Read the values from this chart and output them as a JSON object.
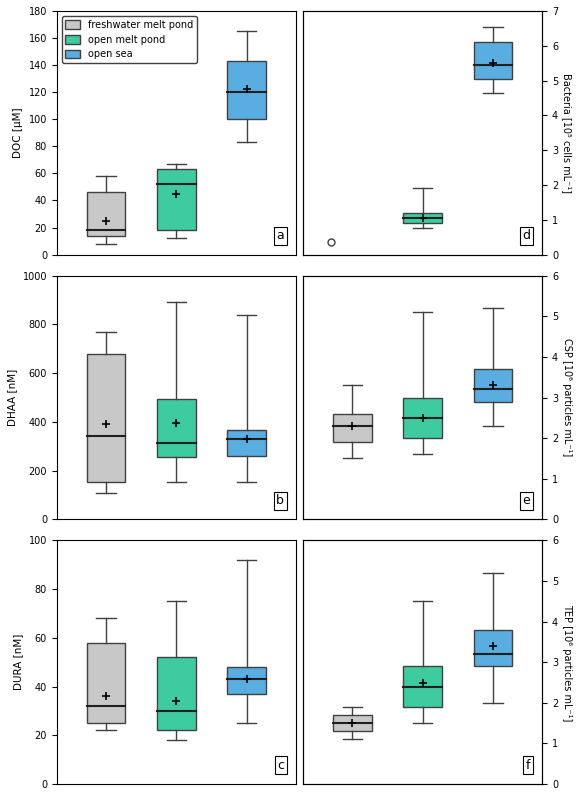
{
  "colors": {
    "freshwater": "#c8c8c8",
    "open_melt": "#3fcba0",
    "open_sea": "#5aade0"
  },
  "legend": [
    "freshwater melt pond",
    "open melt pond",
    "open sea"
  ],
  "panels": {
    "a": {
      "ylabel": "DOC [μM]",
      "ylim": [
        0,
        180
      ],
      "yticks": [
        0,
        20,
        40,
        60,
        80,
        100,
        120,
        140,
        160,
        180
      ],
      "label": "a",
      "boxes": [
        {
          "whislo": 8,
          "q1": 14,
          "med": 18,
          "q3": 46,
          "whishi": 58,
          "mean": 25,
          "fliers": [],
          "color": "freshwater"
        },
        {
          "whislo": 12,
          "q1": 18,
          "med": 52,
          "q3": 63,
          "whishi": 67,
          "mean": 45,
          "fliers": [],
          "color": "open_melt"
        },
        {
          "whislo": 83,
          "q1": 100,
          "med": 120,
          "q3": 143,
          "whishi": 165,
          "mean": 122,
          "fliers": [],
          "color": "open_sea"
        }
      ]
    },
    "b": {
      "ylabel": "DHAA [nM]",
      "ylim": [
        0,
        1000
      ],
      "yticks": [
        0,
        200,
        400,
        600,
        800,
        1000
      ],
      "label": "b",
      "boxes": [
        {
          "whislo": 110,
          "q1": 155,
          "med": 340,
          "q3": 680,
          "whishi": 770,
          "mean": 390,
          "fliers": [],
          "color": "freshwater"
        },
        {
          "whislo": 155,
          "q1": 255,
          "med": 315,
          "q3": 495,
          "whishi": 890,
          "mean": 395,
          "fliers": [],
          "color": "open_melt"
        },
        {
          "whislo": 155,
          "q1": 260,
          "med": 330,
          "q3": 365,
          "whishi": 840,
          "mean": 330,
          "fliers": [],
          "color": "open_sea"
        }
      ]
    },
    "c": {
      "ylabel": "DURA [nM]",
      "ylim": [
        0,
        100
      ],
      "yticks": [
        0,
        20,
        40,
        60,
        80,
        100
      ],
      "label": "c",
      "boxes": [
        {
          "whislo": 22,
          "q1": 25,
          "med": 32,
          "q3": 58,
          "whishi": 68,
          "mean": 36,
          "fliers": [],
          "color": "freshwater"
        },
        {
          "whislo": 18,
          "q1": 22,
          "med": 30,
          "q3": 52,
          "whishi": 75,
          "mean": 34,
          "fliers": [],
          "color": "open_melt"
        },
        {
          "whislo": 25,
          "q1": 37,
          "med": 43,
          "q3": 48,
          "whishi": 92,
          "mean": 43,
          "fliers": [],
          "color": "open_sea"
        }
      ]
    },
    "d": {
      "ylabel": "Bacteria [10⁵ cells mL⁻¹]",
      "ylim": [
        0,
        7
      ],
      "yticks": [
        0,
        1,
        2,
        3,
        4,
        5,
        6,
        7
      ],
      "label": "d",
      "boxes": [
        {
          "whislo": 0.75,
          "q1": 0.9,
          "med": 1.05,
          "q3": 1.2,
          "whishi": 1.9,
          "mean": 1.05,
          "fliers": [
            0.35
          ],
          "color": "open_melt"
        },
        {
          "whislo": 4.65,
          "q1": 5.05,
          "med": 5.45,
          "q3": 6.1,
          "whishi": 6.55,
          "mean": 5.5,
          "fliers": [],
          "color": "open_sea"
        }
      ],
      "positions": [
        2,
        3
      ]
    },
    "e": {
      "ylabel": "CSP [10⁶ particles mL⁻¹]",
      "ylim": [
        0,
        6
      ],
      "yticks": [
        0,
        1,
        2,
        3,
        4,
        5,
        6
      ],
      "label": "e",
      "boxes": [
        {
          "whislo": 1.5,
          "q1": 1.9,
          "med": 2.3,
          "q3": 2.6,
          "whishi": 3.3,
          "mean": 2.3,
          "fliers": [],
          "color": "freshwater"
        },
        {
          "whislo": 1.6,
          "q1": 2.0,
          "med": 2.5,
          "q3": 3.0,
          "whishi": 5.1,
          "mean": 2.5,
          "fliers": [],
          "color": "open_melt"
        },
        {
          "whislo": 2.3,
          "q1": 2.9,
          "med": 3.2,
          "q3": 3.7,
          "whishi": 5.2,
          "mean": 3.3,
          "fliers": [],
          "color": "open_sea"
        }
      ]
    },
    "f": {
      "ylabel": "TEP [10⁶ particles mL⁻¹]",
      "ylim": [
        0,
        6
      ],
      "yticks": [
        0,
        1,
        2,
        3,
        4,
        5,
        6
      ],
      "label": "f",
      "boxes": [
        {
          "whislo": 1.1,
          "q1": 1.3,
          "med": 1.5,
          "q3": 1.7,
          "whishi": 1.9,
          "mean": 1.5,
          "fliers": [],
          "color": "freshwater"
        },
        {
          "whislo": 1.5,
          "q1": 1.9,
          "med": 2.4,
          "q3": 2.9,
          "whishi": 4.5,
          "mean": 2.5,
          "fliers": [],
          "color": "open_melt"
        },
        {
          "whislo": 2.0,
          "q1": 2.9,
          "med": 3.2,
          "q3": 3.8,
          "whishi": 5.2,
          "mean": 3.4,
          "fliers": [],
          "color": "open_sea"
        }
      ]
    }
  }
}
